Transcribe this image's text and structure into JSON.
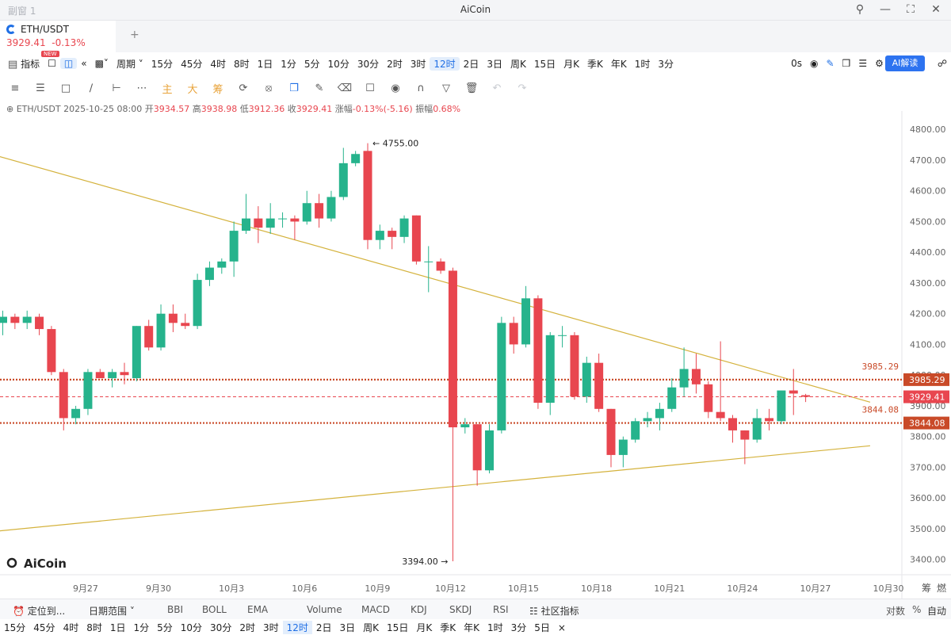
{
  "window": {
    "sub_title": "副窗 1",
    "app_title": "AiCoin"
  },
  "tab": {
    "symbol": "ETH/USDT",
    "price": "3929.41",
    "change": "-0.13%",
    "add": "+"
  },
  "toolbar1": {
    "indicator_label": "指标",
    "period_label": "周期",
    "badge": "NEW",
    "periods": [
      "15分",
      "45分",
      "4时",
      "8时",
      "1日",
      "1分",
      "5分",
      "10分",
      "30分",
      "2时",
      "3时",
      "12时",
      "2日",
      "3日",
      "周K",
      "15日",
      "月K",
      "季K",
      "年K",
      "1时",
      "3分"
    ],
    "selected_period": "12时",
    "countdown": "0s",
    "ai_label": "AI解读"
  },
  "toolbar2": {
    "zhu": "主",
    "da": "大",
    "chou": "筹"
  },
  "info": {
    "pair": "ETH/USDT",
    "time": "2025-10-25 08:00",
    "open_label": "开",
    "open": "3934.57",
    "high_label": "高",
    "high": "3938.98",
    "low_label": "低",
    "low": "3912.36",
    "close_label": "收",
    "close": "3929.41",
    "change_label": "涨幅",
    "change": "-0.13%(-5.16)",
    "amp_label": "振幅",
    "amp": "0.68%"
  },
  "colors": {
    "up": "#26b38c",
    "down": "#e8464f",
    "trend": "#d4b23c",
    "level": "#c94a28",
    "price_tag": "#e8464f"
  },
  "chart_data": {
    "type": "candlestick",
    "ylim": [
      3350,
      4860
    ],
    "y_ticks": [
      3400,
      3500,
      3600,
      3700,
      3800,
      3900,
      4000,
      4100,
      4200,
      4300,
      4400,
      4500,
      4600,
      4700,
      4800
    ],
    "y_tick_labels": [
      "3400.00",
      "3500.00",
      "3600.00",
      "3700.00",
      "3800.00",
      "3900.00",
      "4000.00",
      "4100.00",
      "4200.00",
      "4300.00",
      "4400.00",
      "4500.00",
      "4600.00",
      "4700.00",
      "4800.00"
    ],
    "x_ticks": [
      2.5,
      8.5,
      14.5,
      20.5,
      26.5,
      32.5,
      38.5,
      44.5,
      50.5,
      56.5,
      62.5,
      68.5,
      74.5
    ],
    "x_tick_labels": [
      "9月27",
      "9月30",
      "10月3",
      "10月6",
      "10月9",
      "10月12",
      "10月15",
      "10月18",
      "10月21",
      "10月24",
      "10月27",
      "10月30"
    ],
    "x_label_positions": [
      7,
      13,
      19,
      25,
      31,
      37,
      43,
      49,
      55,
      61,
      67,
      73
    ],
    "candles": [
      {
        "o": 4170,
        "h": 4210,
        "l": 4130,
        "c": 4190
      },
      {
        "o": 4190,
        "h": 4200,
        "l": 4150,
        "c": 4170
      },
      {
        "o": 4170,
        "h": 4210,
        "l": 4150,
        "c": 4190
      },
      {
        "o": 4190,
        "h": 4200,
        "l": 4130,
        "c": 4150
      },
      {
        "o": 4150,
        "h": 4160,
        "l": 4000,
        "c": 4010
      },
      {
        "o": 4010,
        "h": 4020,
        "l": 3820,
        "c": 3860
      },
      {
        "o": 3860,
        "h": 3900,
        "l": 3840,
        "c": 3890
      },
      {
        "o": 3890,
        "h": 4020,
        "l": 3870,
        "c": 4010
      },
      {
        "o": 4010,
        "h": 4020,
        "l": 3990,
        "c": 3990
      },
      {
        "o": 3990,
        "h": 4020,
        "l": 3960,
        "c": 4010
      },
      {
        "o": 4010,
        "h": 4040,
        "l": 3970,
        "c": 4000
      },
      {
        "o": 3990,
        "h": 4160,
        "l": 3980,
        "c": 4160
      },
      {
        "o": 4160,
        "h": 4180,
        "l": 4080,
        "c": 4090
      },
      {
        "o": 4090,
        "h": 4230,
        "l": 4080,
        "c": 4200
      },
      {
        "o": 4200,
        "h": 4230,
        "l": 4140,
        "c": 4170
      },
      {
        "o": 4170,
        "h": 4200,
        "l": 4150,
        "c": 4160
      },
      {
        "o": 4160,
        "h": 4330,
        "l": 4150,
        "c": 4310
      },
      {
        "o": 4310,
        "h": 4370,
        "l": 4290,
        "c": 4350
      },
      {
        "o": 4350,
        "h": 4380,
        "l": 4330,
        "c": 4370
      },
      {
        "o": 4370,
        "h": 4500,
        "l": 4320,
        "c": 4470
      },
      {
        "o": 4470,
        "h": 4590,
        "l": 4460,
        "c": 4510
      },
      {
        "o": 4510,
        "h": 4550,
        "l": 4430,
        "c": 4480
      },
      {
        "o": 4480,
        "h": 4560,
        "l": 4460,
        "c": 4510
      },
      {
        "o": 4510,
        "h": 4530,
        "l": 4480,
        "c": 4510
      },
      {
        "o": 4510,
        "h": 4520,
        "l": 4440,
        "c": 4500
      },
      {
        "o": 4500,
        "h": 4600,
        "l": 4490,
        "c": 4560
      },
      {
        "o": 4560,
        "h": 4590,
        "l": 4480,
        "c": 4510
      },
      {
        "o": 4510,
        "h": 4600,
        "l": 4500,
        "c": 4580
      },
      {
        "o": 4580,
        "h": 4740,
        "l": 4570,
        "c": 4690
      },
      {
        "o": 4690,
        "h": 4730,
        "l": 4680,
        "c": 4720
      },
      {
        "o": 4730,
        "h": 4755,
        "l": 4410,
        "c": 4440
      },
      {
        "o": 4440,
        "h": 4490,
        "l": 4410,
        "c": 4470
      },
      {
        "o": 4470,
        "h": 4480,
        "l": 4410,
        "c": 4450
      },
      {
        "o": 4450,
        "h": 4520,
        "l": 4430,
        "c": 4510
      },
      {
        "o": 4520,
        "h": 4520,
        "l": 4360,
        "c": 4370
      },
      {
        "o": 4370,
        "h": 4420,
        "l": 4270,
        "c": 4370
      },
      {
        "o": 4370,
        "h": 4380,
        "l": 4330,
        "c": 4340
      },
      {
        "o": 4340,
        "h": 4350,
        "l": 3394,
        "c": 3830
      },
      {
        "o": 3830,
        "h": 3860,
        "l": 3810,
        "c": 3840
      },
      {
        "o": 3840,
        "h": 3840,
        "l": 3640,
        "c": 3690
      },
      {
        "o": 3690,
        "h": 3840,
        "l": 3680,
        "c": 3820
      },
      {
        "o": 3820,
        "h": 4190,
        "l": 3810,
        "c": 4170
      },
      {
        "o": 4170,
        "h": 4190,
        "l": 4070,
        "c": 4100
      },
      {
        "o": 4100,
        "h": 4290,
        "l": 4090,
        "c": 4250
      },
      {
        "o": 4250,
        "h": 4260,
        "l": 3890,
        "c": 3910
      },
      {
        "o": 3910,
        "h": 4140,
        "l": 3870,
        "c": 4130
      },
      {
        "o": 4130,
        "h": 4160,
        "l": 4090,
        "c": 4130
      },
      {
        "o": 4130,
        "h": 4140,
        "l": 3920,
        "c": 3930
      },
      {
        "o": 3930,
        "h": 4060,
        "l": 3910,
        "c": 4040
      },
      {
        "o": 4040,
        "h": 4070,
        "l": 3880,
        "c": 3890
      },
      {
        "o": 3890,
        "h": 3890,
        "l": 3700,
        "c": 3740
      },
      {
        "o": 3740,
        "h": 3800,
        "l": 3700,
        "c": 3790
      },
      {
        "o": 3790,
        "h": 3860,
        "l": 3780,
        "c": 3850
      },
      {
        "o": 3850,
        "h": 3880,
        "l": 3830,
        "c": 3860
      },
      {
        "o": 3860,
        "h": 3910,
        "l": 3820,
        "c": 3890
      },
      {
        "o": 3890,
        "h": 3990,
        "l": 3880,
        "c": 3960
      },
      {
        "o": 3960,
        "h": 4090,
        "l": 3930,
        "c": 4020
      },
      {
        "o": 4020,
        "h": 4070,
        "l": 3940,
        "c": 3970
      },
      {
        "o": 3970,
        "h": 3980,
        "l": 3860,
        "c": 3880
      },
      {
        "o": 3880,
        "h": 4110,
        "l": 3850,
        "c": 3860
      },
      {
        "o": 3860,
        "h": 3870,
        "l": 3780,
        "c": 3820
      },
      {
        "o": 3820,
        "h": 3820,
        "l": 3710,
        "c": 3790
      },
      {
        "o": 3790,
        "h": 3890,
        "l": 3780,
        "c": 3860
      },
      {
        "o": 3860,
        "h": 3890,
        "l": 3820,
        "c": 3850
      },
      {
        "o": 3850,
        "h": 3950,
        "l": 3840,
        "c": 3950
      },
      {
        "o": 3950,
        "h": 4020,
        "l": 3870,
        "c": 3940
      },
      {
        "o": 3934.57,
        "h": 3938.98,
        "l": 3912.36,
        "c": 3929.41
      }
    ],
    "annotations": {
      "high": "4755.00",
      "low": "3394.00",
      "high_value": 4755,
      "low_value": 3394,
      "high_index": 30,
      "low_index": 37
    },
    "levels": [
      {
        "value": 3985.29,
        "label": "3985.29"
      },
      {
        "value": 3844.08,
        "label": "3844.08"
      }
    ],
    "current_price": {
      "value": 3929.41,
      "label": "3929.41"
    },
    "trendlines": [
      {
        "x0": -1,
        "y0": 4720,
        "x1": 71.3,
        "y1": 3912
      },
      {
        "x0": -1,
        "y0": 3490,
        "x1": 71.3,
        "y1": 3770
      }
    ],
    "watermark": "AiCoin",
    "right_labels": [
      "筹",
      "燃"
    ]
  },
  "bottom": {
    "locate": "定位到...",
    "range": "日期范围",
    "indicators": [
      "BBI",
      "BOLL",
      "EMA",
      "Volume",
      "MACD",
      "KDJ",
      "SKDJ",
      "RSI"
    ],
    "community": "社区指标",
    "log": "对数",
    "pct": "%",
    "auto": "自动",
    "periods": [
      "15分",
      "45分",
      "4时",
      "8时",
      "1日",
      "1分",
      "5分",
      "10分",
      "30分",
      "2时",
      "3时",
      "12时",
      "2日",
      "3日",
      "周K",
      "15日",
      "月K",
      "季K",
      "年K",
      "1时",
      "3分",
      "5日"
    ],
    "selected_period": "12时",
    "close": "×"
  }
}
